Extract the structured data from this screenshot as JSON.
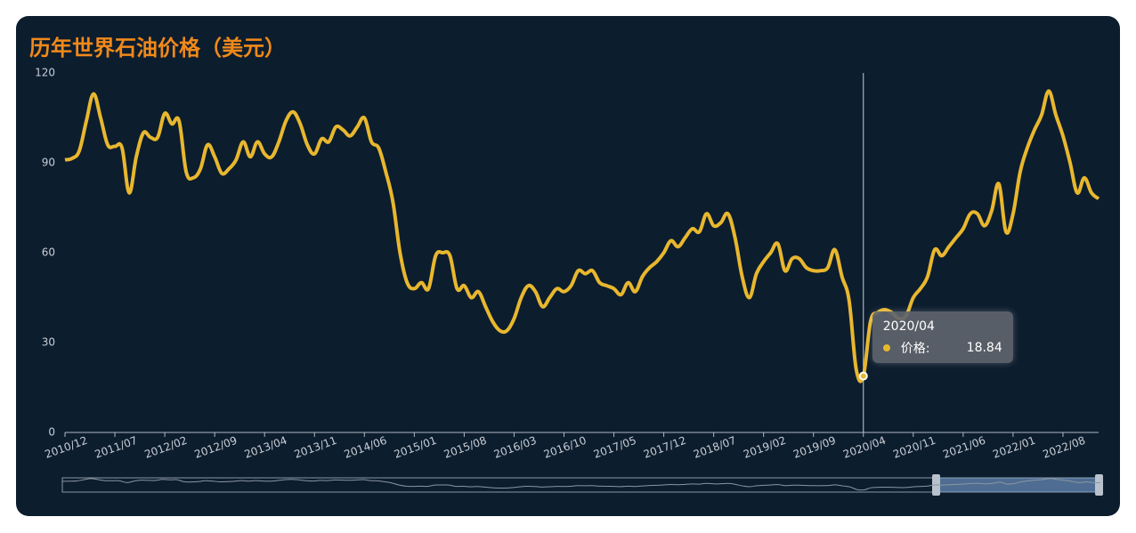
{
  "chart_data": {
    "type": "line",
    "title": "历年世界石油价格（美元）",
    "categories": [
      "2010/12",
      null,
      null,
      null,
      null,
      null,
      null,
      "2011/07",
      null,
      null,
      null,
      null,
      null,
      null,
      "2012/02",
      null,
      null,
      null,
      null,
      null,
      null,
      "2012/09",
      null,
      null,
      null,
      null,
      null,
      null,
      "2013/04",
      null,
      null,
      null,
      null,
      null,
      null,
      "2013/11",
      null,
      null,
      null,
      null,
      null,
      null,
      "2014/06",
      null,
      null,
      null,
      null,
      null,
      null,
      "2015/01",
      null,
      null,
      null,
      null,
      null,
      null,
      "2015/08",
      null,
      null,
      null,
      null,
      null,
      null,
      "2016/03",
      null,
      null,
      null,
      null,
      null,
      null,
      "2016/10",
      null,
      null,
      null,
      null,
      null,
      null,
      "2017/05",
      null,
      null,
      null,
      null,
      null,
      null,
      "2017/12",
      null,
      null,
      null,
      null,
      null,
      null,
      "2018/07",
      null,
      null,
      null,
      null,
      null,
      null,
      "2019/02",
      null,
      null,
      null,
      null,
      null,
      null,
      "2019/09",
      null,
      null,
      null,
      null,
      null,
      null,
      "2020/04",
      null,
      null,
      null,
      null,
      null,
      null,
      "2020/11",
      null,
      null,
      null,
      null,
      null,
      null,
      "2021/06",
      null,
      null,
      null,
      null,
      null,
      null,
      "2022/01",
      null,
      null,
      null,
      null,
      null,
      null,
      "2022/08",
      null,
      null,
      null,
      null,
      null
    ],
    "series": [
      {
        "name": "价格:",
        "color": "#e8b72e",
        "values": [
          91,
          91.5,
          94,
          104,
          113,
          105,
          96,
          95.5,
          95,
          80,
          92,
          100,
          98.5,
          98.5,
          106.5,
          103,
          104,
          87,
          85,
          88,
          96,
          92,
          86.5,
          88,
          91,
          97,
          92,
          97,
          93,
          92,
          97,
          104,
          107,
          103,
          96,
          93,
          98,
          97,
          102,
          101,
          99,
          102,
          105,
          97,
          95,
          87,
          77,
          60,
          50,
          48,
          50,
          48,
          59,
          60,
          59,
          48,
          49,
          45,
          47,
          42,
          37,
          34,
          34,
          38,
          45,
          49,
          47,
          42,
          45,
          48,
          47,
          49,
          54,
          53,
          54,
          50,
          49,
          48,
          46,
          50,
          47,
          52,
          55,
          57,
          60,
          64,
          62,
          65,
          68,
          67,
          73,
          69,
          70,
          73,
          65,
          52,
          45,
          53,
          57,
          60,
          63,
          54,
          58,
          58,
          55,
          54,
          54,
          55,
          61,
          52,
          44,
          21,
          18.84,
          37,
          40,
          41,
          40,
          38,
          39,
          45,
          48,
          52,
          61,
          59,
          62,
          65,
          68,
          73,
          73,
          69,
          74,
          83,
          67,
          73,
          87,
          95,
          101,
          106,
          114,
          106,
          99,
          90,
          80,
          85,
          80,
          78
        ]
      }
    ],
    "ylim": [
      0,
      120
    ],
    "yticks": [
      0,
      30,
      60,
      90,
      120
    ],
    "tooltip_index": 112
  }
}
